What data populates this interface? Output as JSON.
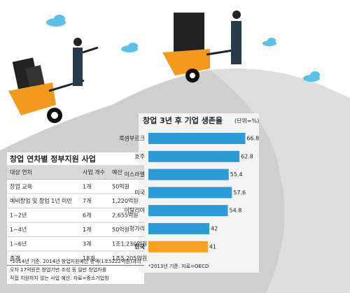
{
  "table": {
    "title": "창업 연차별 정부지원 사업",
    "headers": [
      "대상 연차",
      "사업 개수",
      "예산"
    ],
    "rows": [
      [
        "창업 교육",
        "1개",
        "50억원"
      ],
      [
        "예비창업 및 창업 1년 미만",
        "7개",
        "1,220억원"
      ],
      [
        "1~2년",
        "6개",
        "2,655억원"
      ],
      [
        "1~4년",
        "1개",
        "50억원"
      ],
      [
        "1~6년",
        "3개",
        "1조1,230억원"
      ],
      [
        "총계",
        "18개",
        "1조5,205억원"
      ]
    ],
    "footnote": [
      "*2014년 기준. 2014년 창업지원예산 총액(1조5222억원)과의",
      "오차 17억원은 창업기반 조성 등 일반 창업자를",
      "직접 지원하지 않는 사업 예산. 자료=중소기업청"
    ]
  },
  "chart_data": {
    "type": "bar",
    "orientation": "horizontal",
    "title": "창업 3년 후 기업 생존율",
    "subtitle": "(단위=%)",
    "categories": [
      "룩셈부르크",
      "호주",
      "이스라엘",
      "미국",
      "이탈리아",
      "헝가리",
      "한국"
    ],
    "values": [
      66.8,
      62.8,
      55.4,
      57.6,
      54.8,
      42,
      41
    ],
    "colors": [
      "#2b9ad6",
      "#2b9ad6",
      "#2b9ad6",
      "#2b9ad6",
      "#2b9ad6",
      "#2b9ad6",
      "#f5a01e"
    ],
    "xlim": [
      0,
      70
    ],
    "note": "*2013년 기준. 자료=OECD"
  }
}
